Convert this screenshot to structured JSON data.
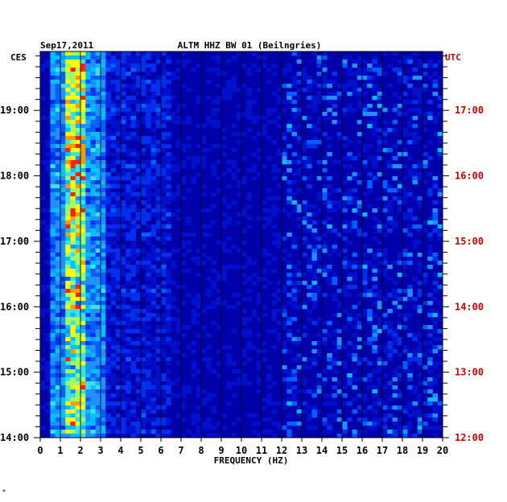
{
  "chart_data": {
    "type": "heatmap",
    "title": "ALTM HHZ BW 01 (Beilngries)",
    "date": "Sep17,2011",
    "left_zone": "CES",
    "right_zone": "UTC",
    "xlabel": "FREQUENCY (HZ)",
    "xlim": [
      0,
      20
    ],
    "x_ticks": [
      "0",
      "1",
      "2",
      "3",
      "4",
      "5",
      "6",
      "7",
      "8",
      "9",
      "10",
      "11",
      "12",
      "13",
      "14",
      "15",
      "16",
      "17",
      "18",
      "19",
      "20"
    ],
    "y_ticks_left": [
      "19:00",
      "18:00",
      "17:00",
      "16:00",
      "15:00",
      "14:00"
    ],
    "y_ticks_right": [
      "17:00",
      "16:00",
      "15:00",
      "14:00",
      "13:00",
      "12:00"
    ],
    "time_range_local_hours": [
      14.0,
      19.9
    ],
    "dominant_band_hz": [
      0.3,
      3.2
    ],
    "peak_band_hz": [
      1.2,
      2.2
    ],
    "colors": {
      "background": "#0000aa",
      "frame": "#000000",
      "grid": "#000000",
      "utc_text": "#cc0000",
      "text": "#000000"
    }
  },
  "footer_mark": "*"
}
